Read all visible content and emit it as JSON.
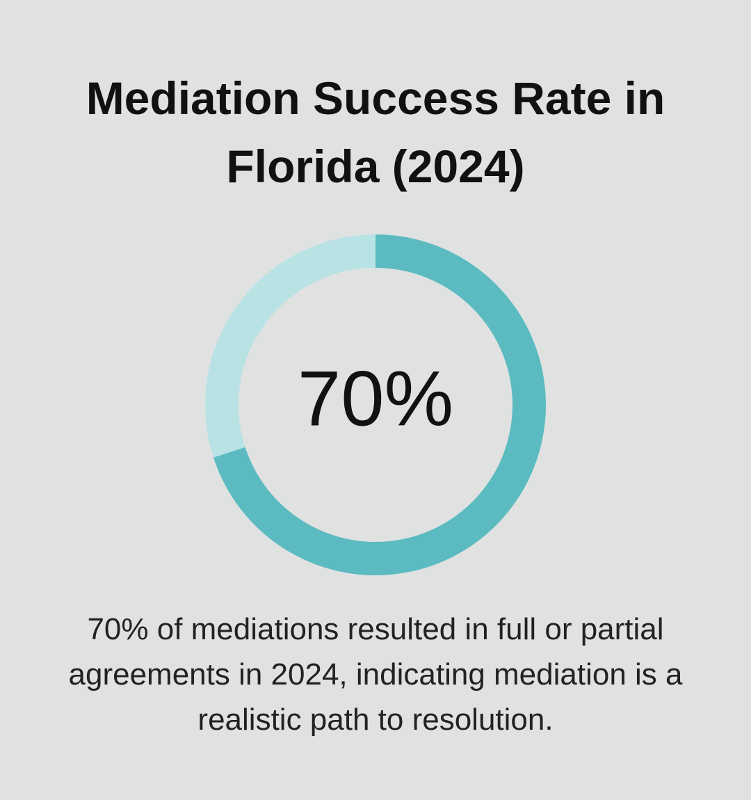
{
  "chart_data": {
    "type": "donut",
    "title": "Mediation Success Rate in Florida (2024)",
    "values": [
      70
    ],
    "value_labels": [
      "70%"
    ],
    "ylim": [
      0,
      100
    ],
    "color": "#5bbbc0",
    "track_color": "#b9e2e5",
    "caption": "70% of mediations resulted in full or partial agreements in 2024, indicating mediation is a realistic path to resolution."
  }
}
